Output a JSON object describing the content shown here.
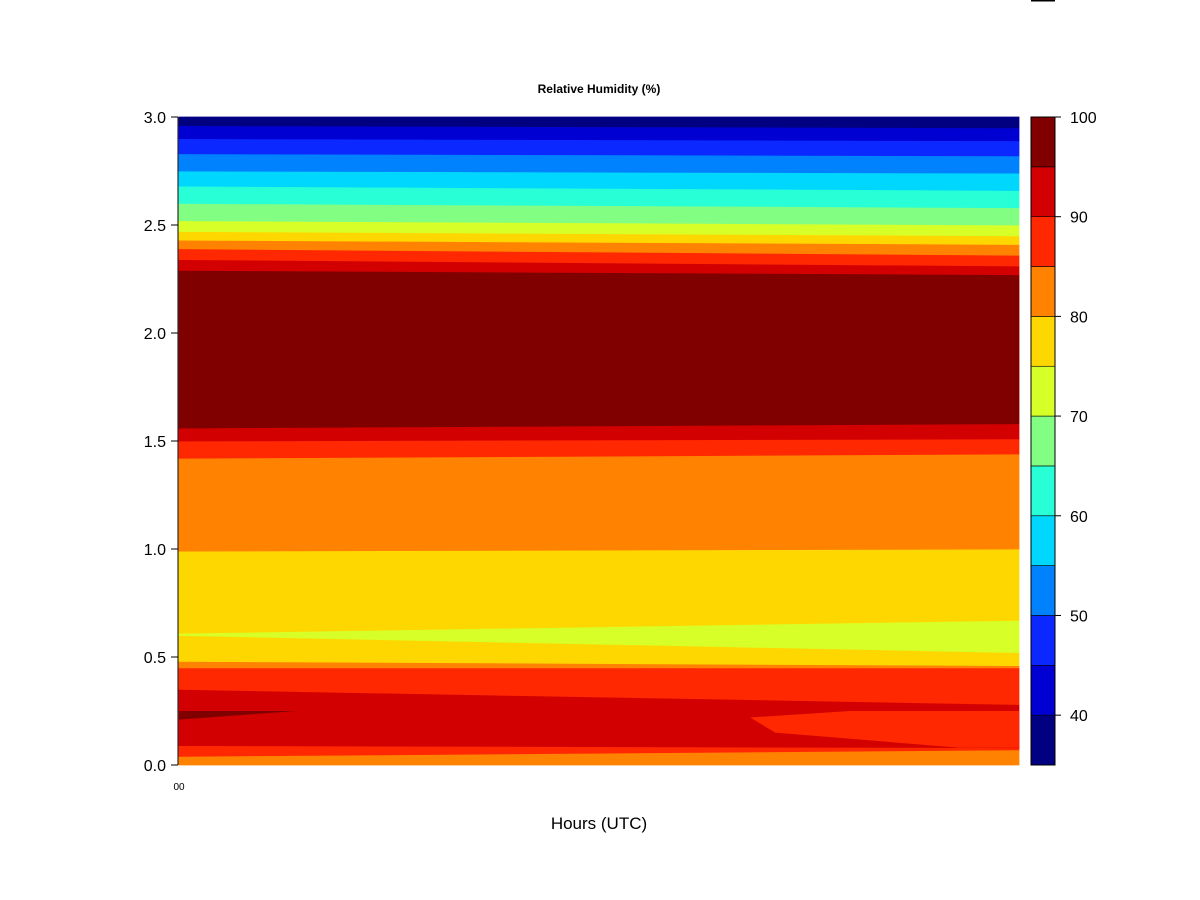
{
  "chart_data": {
    "type": "heatmap",
    "subtype": "filled-contour",
    "title": "Relative Humidity (%)",
    "xlabel": "Hours (UTC)",
    "ylabel": "",
    "x_tick_labels": [
      "00"
    ],
    "ylim": [
      0.0,
      3.0
    ],
    "y_ticks": [
      0.0,
      0.5,
      1.0,
      1.5,
      2.0,
      2.5,
      3.0
    ],
    "y_tick_labels": [
      "0.0",
      "0.5",
      "1.0",
      "1.5",
      "2.0",
      "2.5",
      "3.0"
    ],
    "colorbar": {
      "range": [
        35,
        100
      ],
      "levels": [
        35,
        40,
        45,
        50,
        55,
        60,
        65,
        70,
        75,
        80,
        85,
        90,
        95,
        100
      ],
      "tick_values": [
        40,
        50,
        60,
        70,
        80,
        90,
        100
      ],
      "tick_labels": [
        "40",
        "50",
        "60",
        "70",
        "80",
        "90",
        "100"
      ],
      "colors": [
        "#000080",
        "#0000d2",
        "#0a28ff",
        "#0082ff",
        "#00d7ff",
        "#28ffd7",
        "#82ff82",
        "#d7ff28",
        "#ffd700",
        "#ff8200",
        "#ff2800",
        "#d20000",
        "#800000"
      ]
    },
    "bands": [
      {
        "y_left": 0.04,
        "y_right": 0.07,
        "value_bin": "80-85"
      },
      {
        "y_left": 0.09,
        "y_right": 0.08,
        "value_bin": "85-90"
      },
      {
        "y_left": 0.35,
        "y_right": 0.28,
        "value_bin": "90-95"
      },
      {
        "y_left": 0.45,
        "y_right": 0.45,
        "value_bin": "85-90"
      },
      {
        "y_left": 0.48,
        "y_right": 0.46,
        "value_bin": "80-85"
      },
      {
        "y_left": 0.6,
        "y_right": 0.52,
        "value_bin": "75-80"
      },
      {
        "y_left": 0.61,
        "y_right": 0.67,
        "value_bin": "70-75"
      },
      {
        "y_left": 0.99,
        "y_right": 1.0,
        "value_bin": "75-80"
      },
      {
        "y_left": 1.42,
        "y_right": 1.44,
        "value_bin": "80-85"
      },
      {
        "y_left": 1.5,
        "y_right": 1.51,
        "value_bin": "85-90"
      },
      {
        "y_left": 1.56,
        "y_right": 1.58,
        "value_bin": "90-95"
      },
      {
        "y_left": 2.29,
        "y_right": 2.27,
        "value_bin": "95-100"
      },
      {
        "y_left": 2.34,
        "y_right": 2.31,
        "value_bin": "90-95"
      },
      {
        "y_left": 2.39,
        "y_right": 2.36,
        "value_bin": "85-90"
      },
      {
        "y_left": 2.43,
        "y_right": 2.41,
        "value_bin": "80-85"
      },
      {
        "y_left": 2.47,
        "y_right": 2.45,
        "value_bin": "75-80"
      },
      {
        "y_left": 2.52,
        "y_right": 2.5,
        "value_bin": "70-75"
      },
      {
        "y_left": 2.6,
        "y_right": 2.58,
        "value_bin": "65-70"
      },
      {
        "y_left": 2.68,
        "y_right": 2.66,
        "value_bin": "60-65"
      },
      {
        "y_left": 2.75,
        "y_right": 2.74,
        "value_bin": "55-60"
      },
      {
        "y_left": 2.83,
        "y_right": 2.82,
        "value_bin": "50-55"
      },
      {
        "y_left": 2.9,
        "y_right": 2.89,
        "value_bin": "45-50"
      },
      {
        "y_left": 2.96,
        "y_right": 2.95,
        "value_bin": "40-45"
      },
      {
        "y_left": 3.0,
        "y_right": 3.0,
        "value_bin": "35-40"
      }
    ],
    "features": [
      {
        "value_bin": "95-100",
        "shape": "tongue",
        "y_base_low": 0.21,
        "y_base_high": 0.25,
        "y_tip": 0.25,
        "x_tip_fraction": 0.14
      },
      {
        "value_bin": "85-90",
        "shape": "tongue-from-right",
        "y_base_low": 0.15,
        "y_base_high": 0.22,
        "y_tip": 0.25,
        "x_tip_fraction": 0.68
      }
    ]
  }
}
